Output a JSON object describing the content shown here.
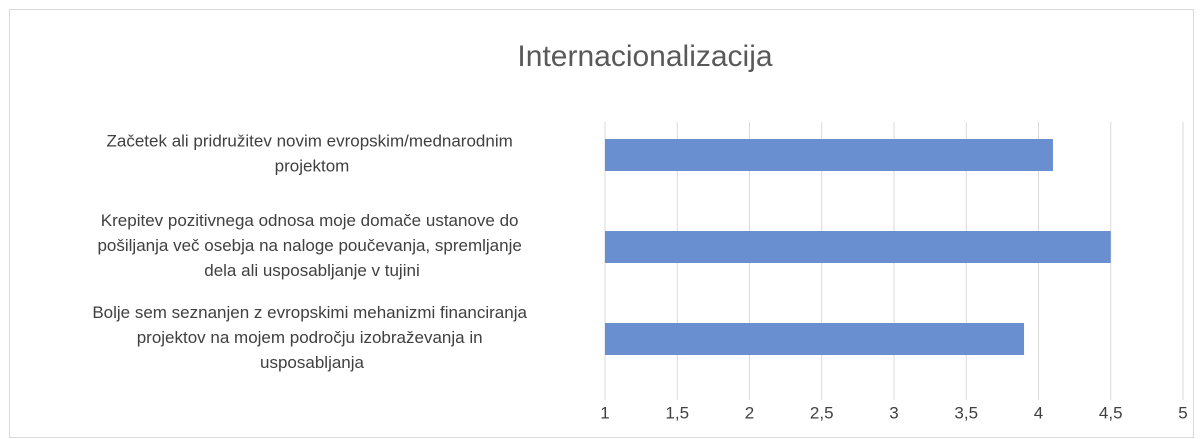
{
  "chart_data": {
    "type": "bar",
    "orientation": "horizontal",
    "title": "Internacionalizacija",
    "categories": [
      "Začetek ali pridružitev novim evropskim/mednarodnim projektom",
      "Krepitev pozitivnega odnosa moje domače ustanove do pošiljanja več osebja na naloge poučevanja, spremljanje dela ali usposabljanje v tujini",
      "Bolje sem seznanjen z evropskimi mehanizmi financiranja projektov na mojem področju izobraževanja in usposabljanja"
    ],
    "values": [
      4.1,
      4.5,
      3.9
    ],
    "color": "#6a8fd0",
    "xlim": [
      1,
      5
    ],
    "xticks": [
      1,
      {
        "value": 1.5,
        "label": "1,5"
      },
      2,
      {
        "value": 2.5,
        "label": "2,5"
      },
      3,
      {
        "value": 3.5,
        "label": "3,5"
      },
      4,
      {
        "value": 4.5,
        "label": "4,5"
      },
      5
    ],
    "grid": true
  }
}
